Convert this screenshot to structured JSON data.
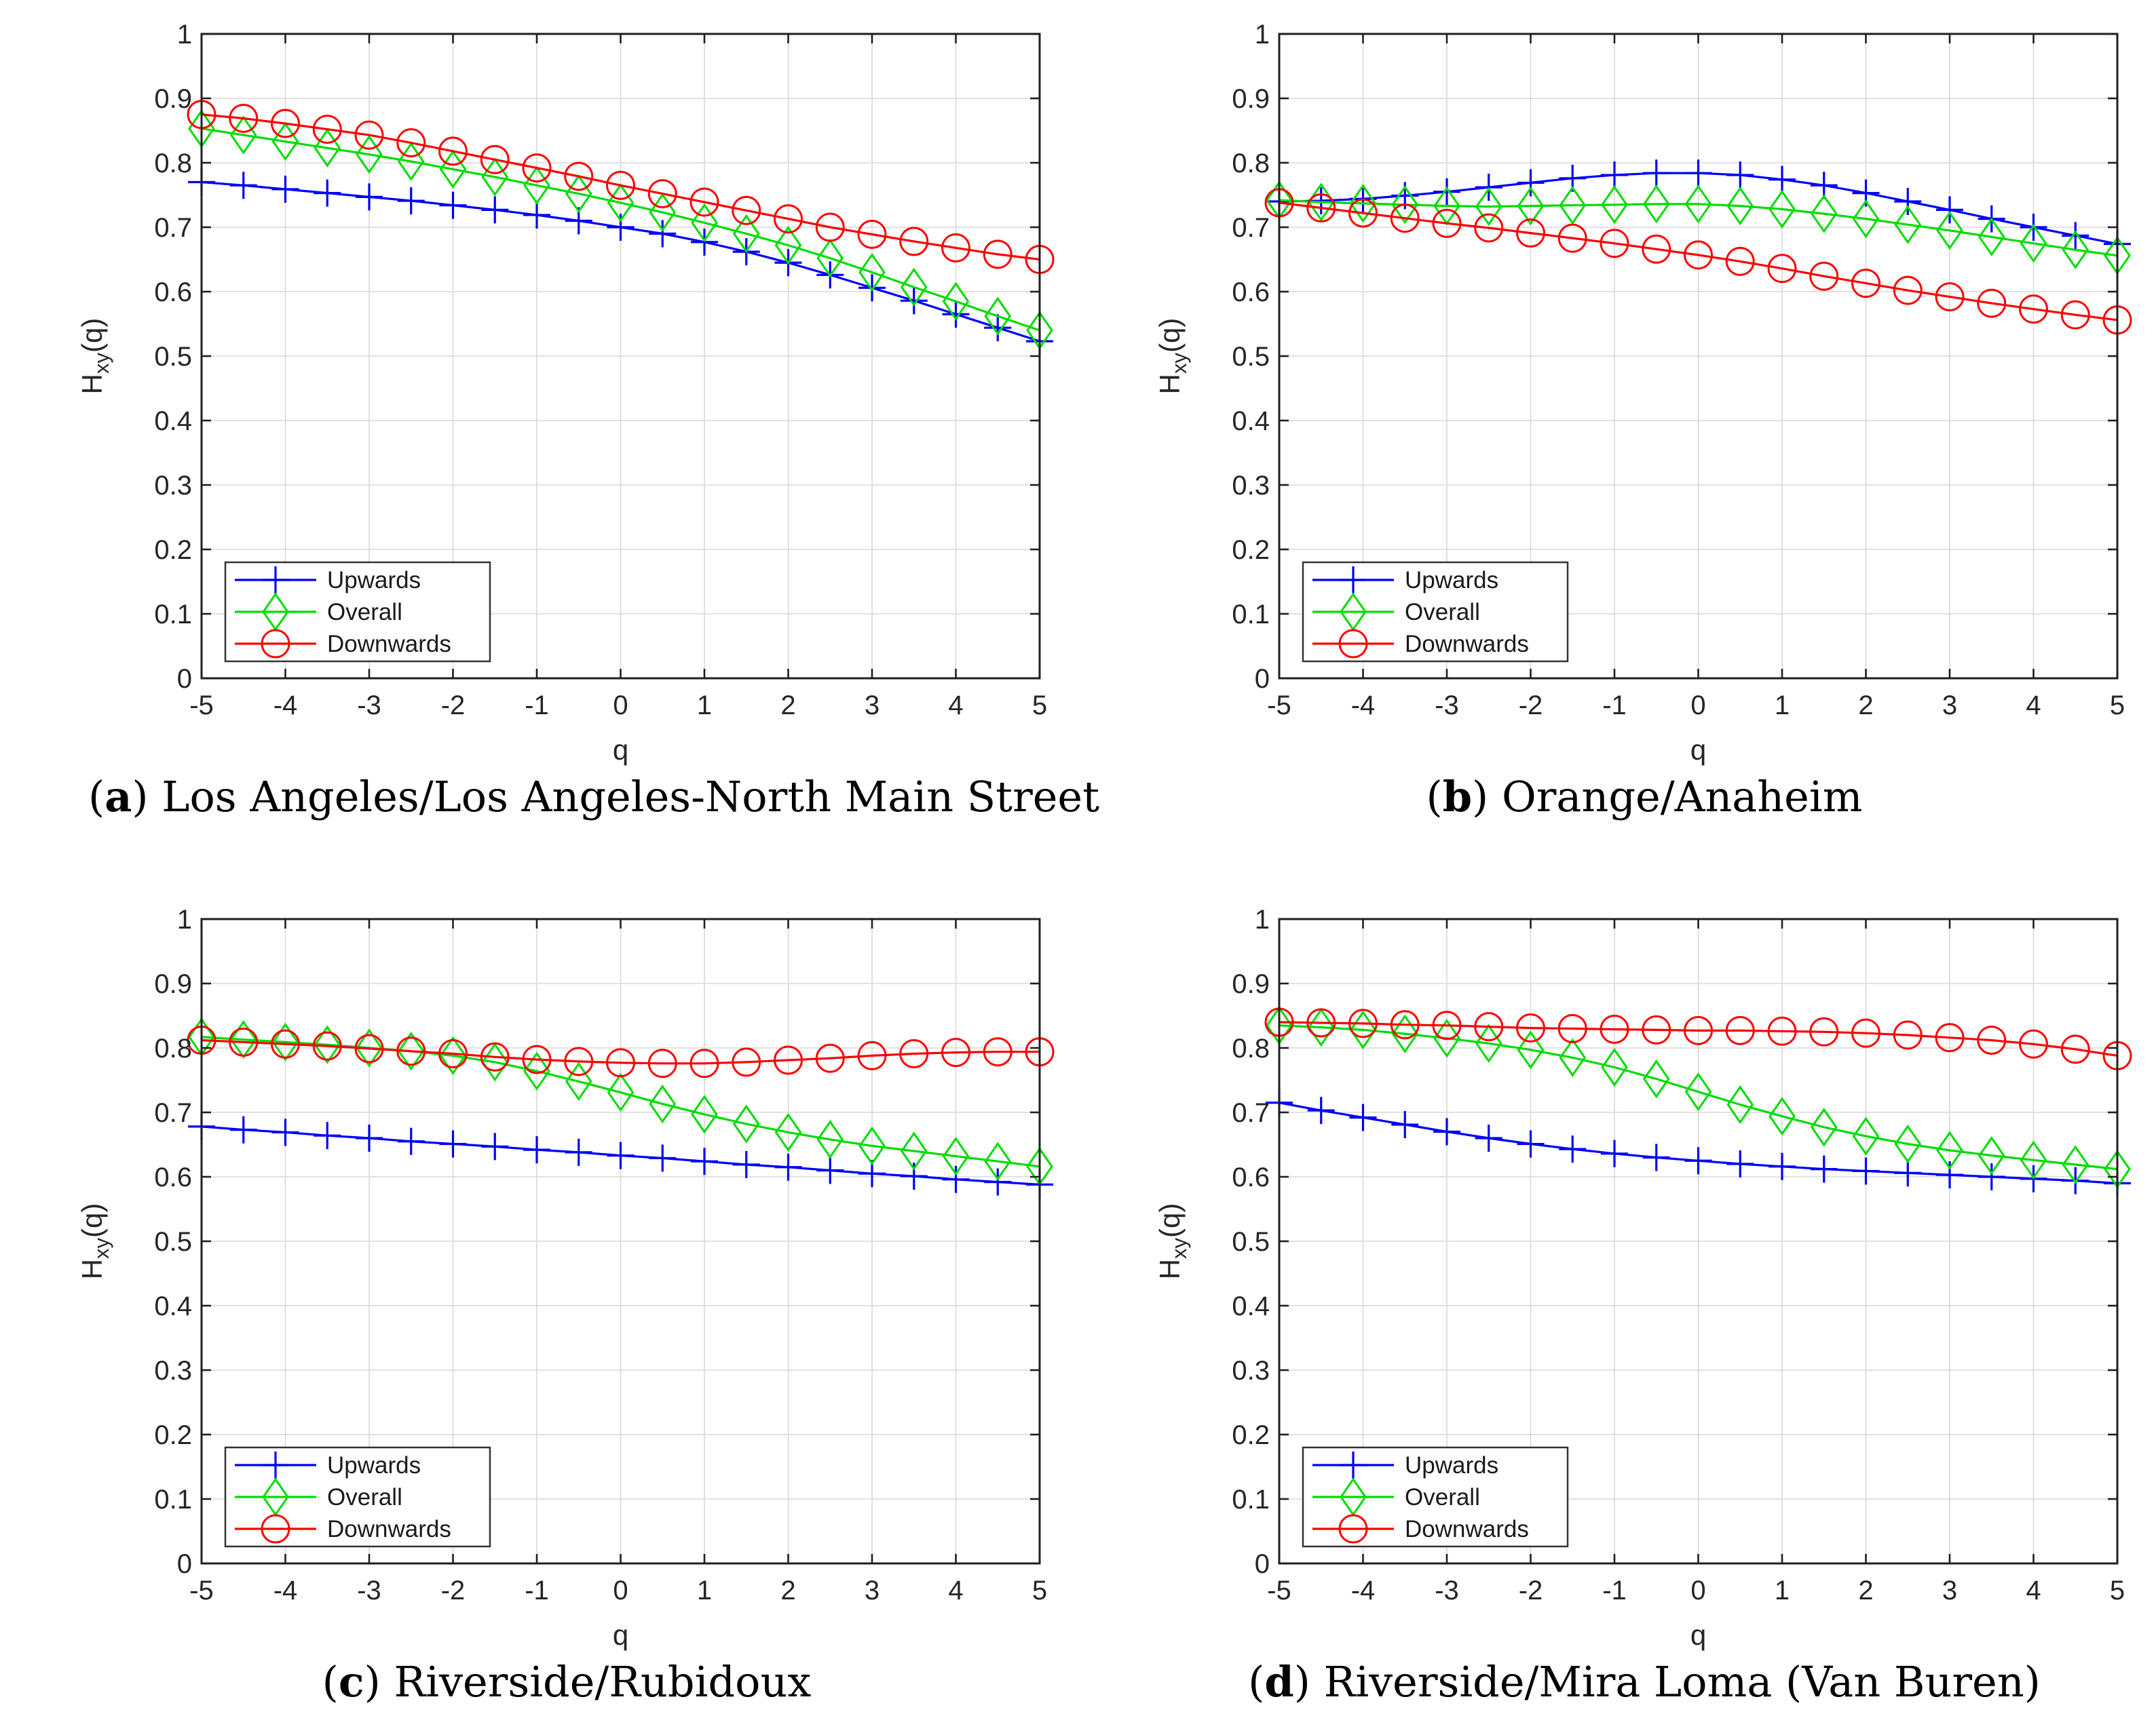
{
  "figure": {
    "xlabel": "q",
    "ylabel": {
      "base": "H",
      "sub": "xy",
      "suffix": "(q)"
    },
    "xlim": [
      -5,
      5
    ],
    "ylim": [
      0,
      1
    ],
    "x_ticks": [
      -5,
      -4,
      -3,
      -2,
      -1,
      0,
      1,
      2,
      3,
      4,
      5
    ],
    "x_tick_labels": [
      "-5",
      "-4",
      "-3",
      "-2",
      "-1",
      "0",
      "1",
      "2",
      "3",
      "4",
      "5"
    ],
    "y_ticks": [
      0,
      0.1,
      0.2,
      0.3,
      0.4,
      0.5,
      0.6,
      0.7,
      0.8,
      0.9,
      1
    ],
    "y_tick_labels": [
      "0",
      "0.1",
      "0.2",
      "0.3",
      "0.4",
      "0.5",
      "0.6",
      "0.7",
      "0.8",
      "0.9",
      "1"
    ],
    "grid": true,
    "legend_position": "bottom-left",
    "caption_open": "(",
    "caption_close": ") ",
    "series_style": [
      {
        "label": "Upwards",
        "color": "#0000ff",
        "marker": "plus"
      },
      {
        "label": "Overall",
        "color": "#00dc00",
        "marker": "diamond"
      },
      {
        "label": "Downwards",
        "color": "#ff0000",
        "marker": "circle"
      }
    ],
    "colors": {
      "axis": "#1f1f1f",
      "tick_text": "#262626",
      "grid": "#d9d9d9",
      "background": "#ffffff",
      "legend_border": "#333333"
    }
  },
  "chart_data": [
    {
      "type": "line",
      "caption_letter": "a",
      "caption_title": "Los Angeles/Los Angeles-North Main Street",
      "xlabel": "q",
      "ylabel": "Hxy(q)",
      "xlim": [
        -5,
        5
      ],
      "ylim": [
        0,
        1
      ],
      "x": [
        -5,
        -4.5,
        -4,
        -3.5,
        -3,
        -2.5,
        -2,
        -1.5,
        -1,
        -0.5,
        0,
        0.5,
        1,
        1.5,
        2,
        2.5,
        3,
        3.5,
        4,
        4.5,
        5
      ],
      "series": [
        {
          "name": "Upwards",
          "values": [
            0.77,
            0.765,
            0.759,
            0.753,
            0.747,
            0.741,
            0.734,
            0.727,
            0.719,
            0.71,
            0.7,
            0.69,
            0.677,
            0.662,
            0.645,
            0.626,
            0.606,
            0.586,
            0.565,
            0.544,
            0.523
          ]
        },
        {
          "name": "Overall",
          "values": [
            0.853,
            0.843,
            0.833,
            0.823,
            0.813,
            0.802,
            0.79,
            0.778,
            0.765,
            0.752,
            0.738,
            0.723,
            0.707,
            0.69,
            0.672,
            0.652,
            0.63,
            0.607,
            0.585,
            0.562,
            0.54
          ]
        },
        {
          "name": "Downwards",
          "values": [
            0.875,
            0.869,
            0.861,
            0.852,
            0.843,
            0.831,
            0.818,
            0.805,
            0.792,
            0.779,
            0.765,
            0.752,
            0.739,
            0.726,
            0.713,
            0.7,
            0.689,
            0.678,
            0.668,
            0.658,
            0.65
          ]
        }
      ]
    },
    {
      "type": "line",
      "caption_letter": "b",
      "caption_title": "Orange/Anaheim",
      "xlabel": "q",
      "ylabel": "Hxy(q)",
      "xlim": [
        -5,
        5
      ],
      "ylim": [
        0,
        1
      ],
      "x": [
        -5,
        -4.5,
        -4,
        -3.5,
        -3,
        -2.5,
        -2,
        -1.5,
        -1,
        -0.5,
        0,
        0.5,
        1,
        1.5,
        2,
        2.5,
        3,
        3.5,
        4,
        4.5,
        5
      ],
      "series": [
        {
          "name": "Upwards",
          "values": [
            0.74,
            0.741,
            0.744,
            0.749,
            0.755,
            0.762,
            0.769,
            0.776,
            0.781,
            0.784,
            0.784,
            0.781,
            0.774,
            0.765,
            0.753,
            0.74,
            0.727,
            0.713,
            0.7,
            0.687,
            0.674
          ]
        },
        {
          "name": "Overall",
          "values": [
            0.742,
            0.739,
            0.737,
            0.735,
            0.733,
            0.732,
            0.733,
            0.734,
            0.735,
            0.736,
            0.736,
            0.733,
            0.728,
            0.721,
            0.713,
            0.704,
            0.695,
            0.685,
            0.675,
            0.665,
            0.656
          ]
        },
        {
          "name": "Downwards",
          "values": [
            0.738,
            0.73,
            0.722,
            0.714,
            0.706,
            0.699,
            0.691,
            0.683,
            0.675,
            0.666,
            0.657,
            0.647,
            0.636,
            0.624,
            0.613,
            0.602,
            0.592,
            0.582,
            0.573,
            0.564,
            0.556
          ]
        }
      ]
    },
    {
      "type": "line",
      "caption_letter": "c",
      "caption_title": "Riverside/Rubidoux",
      "xlabel": "q",
      "ylabel": "Hxy(q)",
      "xlim": [
        -5,
        5
      ],
      "ylim": [
        0,
        1
      ],
      "x": [
        -5,
        -4.5,
        -4,
        -3.5,
        -3,
        -2.5,
        -2,
        -1.5,
        -1,
        -0.5,
        0,
        0.5,
        1,
        1.5,
        2,
        2.5,
        3,
        3.5,
        4,
        4.5,
        5
      ],
      "series": [
        {
          "name": "Upwards",
          "values": [
            0.678,
            0.673,
            0.669,
            0.664,
            0.66,
            0.655,
            0.651,
            0.647,
            0.642,
            0.638,
            0.633,
            0.629,
            0.624,
            0.619,
            0.615,
            0.61,
            0.605,
            0.601,
            0.596,
            0.592,
            0.588
          ]
        },
        {
          "name": "Overall",
          "values": [
            0.817,
            0.813,
            0.809,
            0.805,
            0.8,
            0.795,
            0.788,
            0.778,
            0.764,
            0.748,
            0.731,
            0.713,
            0.697,
            0.682,
            0.669,
            0.658,
            0.648,
            0.64,
            0.632,
            0.624,
            0.616
          ]
        },
        {
          "name": "Downwards",
          "values": [
            0.812,
            0.809,
            0.806,
            0.803,
            0.799,
            0.795,
            0.791,
            0.786,
            0.782,
            0.779,
            0.777,
            0.776,
            0.776,
            0.778,
            0.781,
            0.784,
            0.788,
            0.791,
            0.793,
            0.794,
            0.794
          ]
        }
      ]
    },
    {
      "type": "line",
      "caption_letter": "d",
      "caption_title": "Riverside/Mira Loma (Van Buren)",
      "xlabel": "q",
      "ylabel": "Hxy(q)",
      "xlim": [
        -5,
        5
      ],
      "ylim": [
        0,
        1
      ],
      "x": [
        -5,
        -4.5,
        -4,
        -3.5,
        -3,
        -2.5,
        -2,
        -1.5,
        -1,
        -0.5,
        0,
        0.5,
        1,
        1.5,
        2,
        2.5,
        3,
        3.5,
        4,
        4.5,
        5
      ],
      "series": [
        {
          "name": "Upwards",
          "values": [
            0.715,
            0.703,
            0.692,
            0.681,
            0.67,
            0.66,
            0.651,
            0.643,
            0.636,
            0.63,
            0.625,
            0.62,
            0.616,
            0.612,
            0.609,
            0.606,
            0.603,
            0.6,
            0.597,
            0.594,
            0.59
          ]
        },
        {
          "name": "Overall",
          "values": [
            0.835,
            0.832,
            0.828,
            0.822,
            0.815,
            0.807,
            0.797,
            0.785,
            0.77,
            0.752,
            0.732,
            0.712,
            0.694,
            0.677,
            0.663,
            0.651,
            0.641,
            0.633,
            0.626,
            0.619,
            0.612
          ]
        },
        {
          "name": "Downwards",
          "values": [
            0.84,
            0.839,
            0.838,
            0.836,
            0.835,
            0.833,
            0.831,
            0.83,
            0.829,
            0.828,
            0.827,
            0.827,
            0.826,
            0.825,
            0.823,
            0.82,
            0.816,
            0.812,
            0.806,
            0.798,
            0.788
          ]
        }
      ]
    }
  ]
}
